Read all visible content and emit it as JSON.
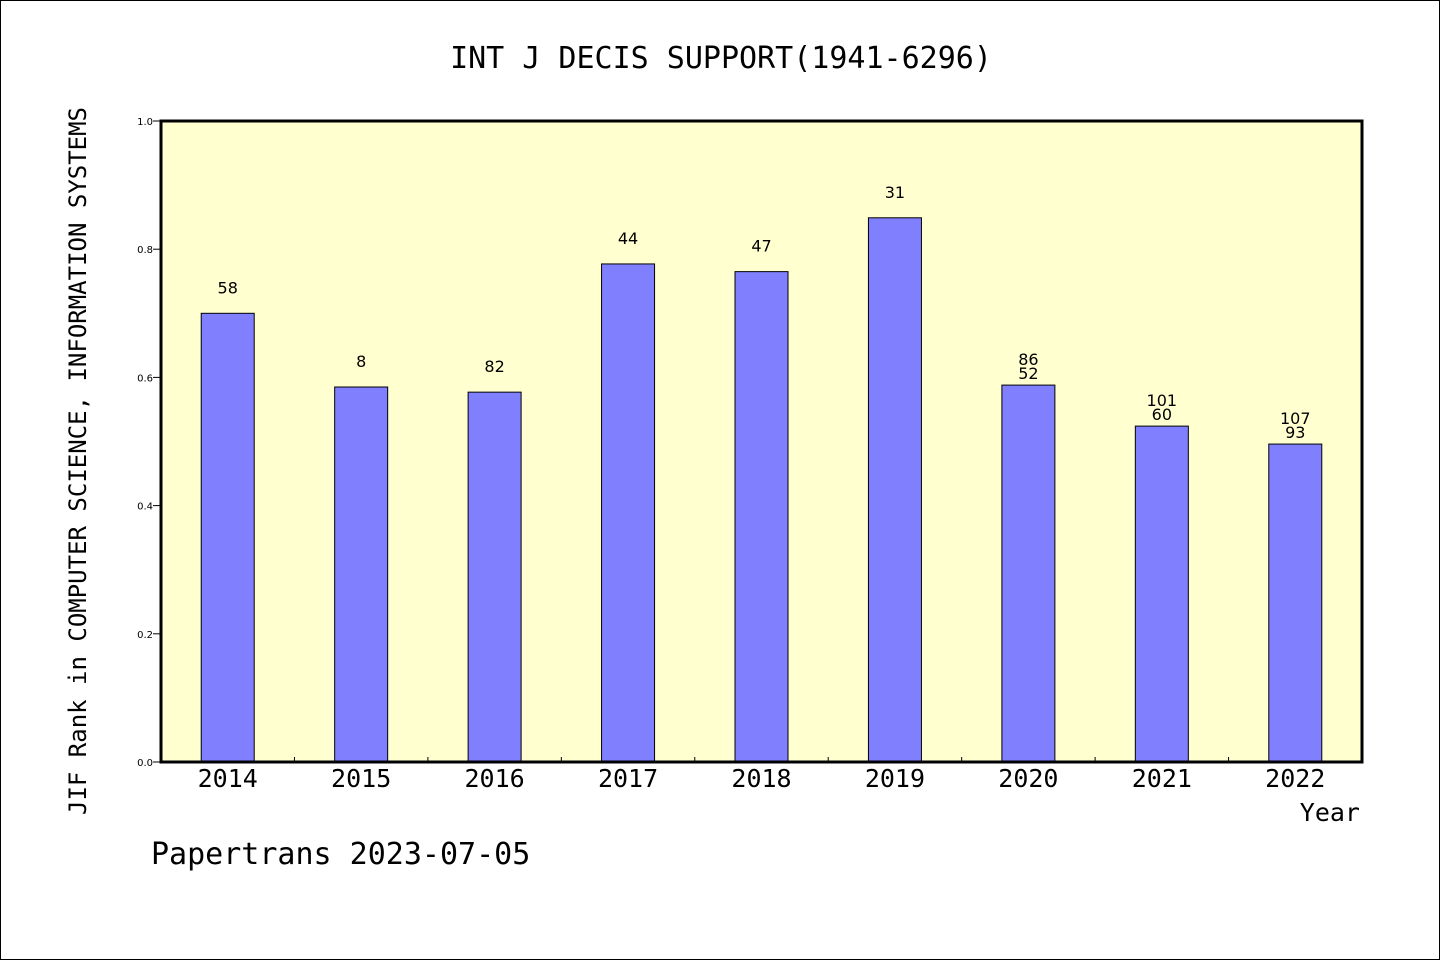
{
  "chart_data": {
    "type": "bar",
    "title": "INT J DECIS SUPPORT(1941-6296)",
    "xlabel": "Year",
    "ylabel": "JIF Rank in COMPUTER SCIENCE, INFORMATION SYSTEMS",
    "ylim": [
      0,
      1.0
    ],
    "yticks": [
      "0.0",
      "0.2",
      "0.4",
      "0.6",
      "0.8",
      "1.0"
    ],
    "categories": [
      "2014",
      "2015",
      "2016",
      "2017",
      "2018",
      "2019",
      "2020",
      "2021",
      "2022"
    ],
    "values": [
      0.7,
      0.585,
      0.577,
      0.777,
      0.765,
      0.849,
      0.588,
      0.524,
      0.496
    ],
    "bar_labels": [
      [
        "58"
      ],
      [
        "8"
      ],
      [
        "82"
      ],
      [
        "44"
      ],
      [
        "47"
      ],
      [
        "31"
      ],
      [
        "86",
        "52"
      ],
      [
        "101",
        "60"
      ],
      [
        "107",
        "93"
      ]
    ],
    "grid": false,
    "colors": {
      "bar": "#8080ff",
      "plot_background": "#ffffd0"
    }
  },
  "footer": "Papertrans 2023-07-05"
}
